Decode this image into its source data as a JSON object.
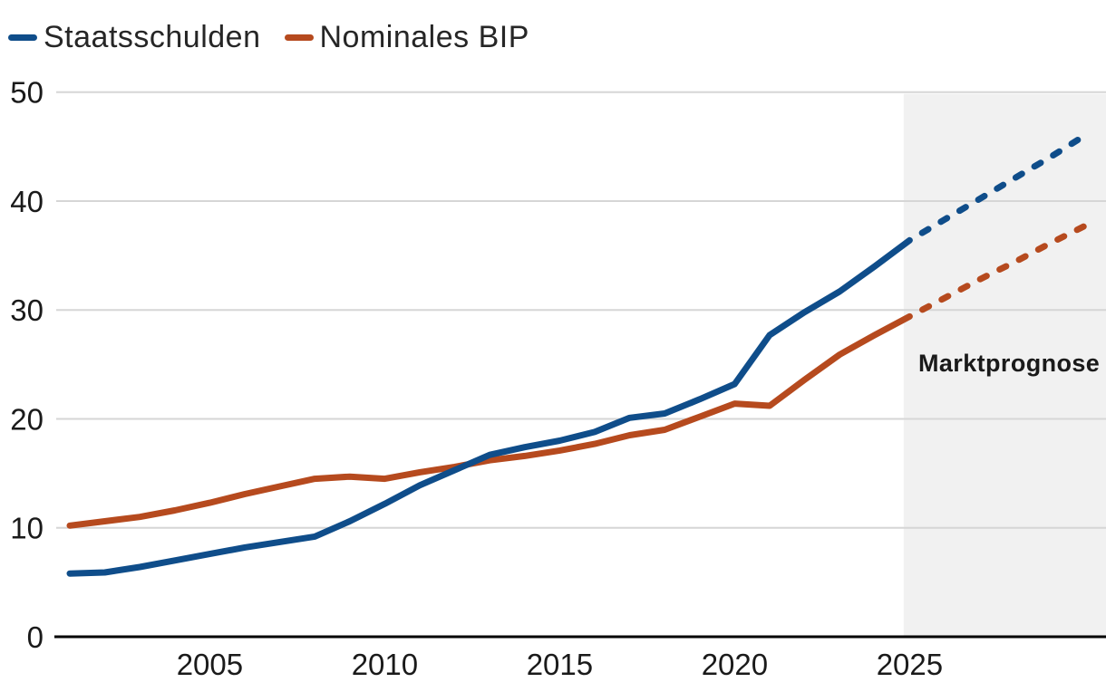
{
  "legend": {
    "items": [
      {
        "label": "Staatsschulden",
        "color": "#0f4d8a"
      },
      {
        "label": "Nominales BIP",
        "color": "#b64a1e"
      }
    ]
  },
  "annotation": {
    "forecast_label": "Marktprognose"
  },
  "colors": {
    "series_debt": "#0f4d8a",
    "series_gdp": "#b64a1e",
    "gridline": "#d6d6d6",
    "axis": "#000000",
    "forecast_bg": "#f1f1f1",
    "tick_text": "#1a1a1a"
  },
  "chart_data": {
    "type": "line",
    "title": "",
    "xlabel": "",
    "ylabel": "",
    "x": [
      2001,
      2002,
      2003,
      2004,
      2005,
      2006,
      2007,
      2008,
      2009,
      2010,
      2011,
      2012,
      2013,
      2014,
      2015,
      2016,
      2017,
      2018,
      2019,
      2020,
      2021,
      2022,
      2023,
      2024,
      2025,
      2026,
      2027,
      2028,
      2029,
      2030
    ],
    "series": [
      {
        "name": "Staatsschulden",
        "color": "#0f4d8a",
        "style_solid_until": 2025,
        "style_dashed_from": 2025,
        "values": [
          5.8,
          5.9,
          6.4,
          7.0,
          7.6,
          8.2,
          8.7,
          9.2,
          10.6,
          12.2,
          13.9,
          15.3,
          16.7,
          17.4,
          18.0,
          18.8,
          20.1,
          20.5,
          21.8,
          23.2,
          27.7,
          29.8,
          31.7,
          34.0,
          36.4,
          38.3,
          40.2,
          42.1,
          44.0,
          46.0
        ]
      },
      {
        "name": "Nominales BIP",
        "color": "#b64a1e",
        "style_solid_until": 2025,
        "style_dashed_from": 2025,
        "values": [
          10.2,
          10.6,
          11.0,
          11.6,
          12.3,
          13.1,
          13.8,
          14.5,
          14.7,
          14.5,
          15.1,
          15.6,
          16.2,
          16.6,
          17.1,
          17.7,
          18.5,
          19.0,
          20.2,
          21.4,
          21.2,
          23.6,
          25.9,
          27.7,
          29.4,
          31.1,
          32.8,
          34.4,
          36.1,
          37.7
        ]
      }
    ],
    "xticks": [
      2005,
      2010,
      2015,
      2020,
      2025
    ],
    "yticks": [
      0,
      10,
      20,
      30,
      40,
      50
    ],
    "xlim": [
      2001,
      2030
    ],
    "ylim": [
      0,
      50
    ],
    "grid": true,
    "legend_position": "top-left",
    "forecast_region_start": 2024.83,
    "forecast_label": "Marktprognose"
  }
}
